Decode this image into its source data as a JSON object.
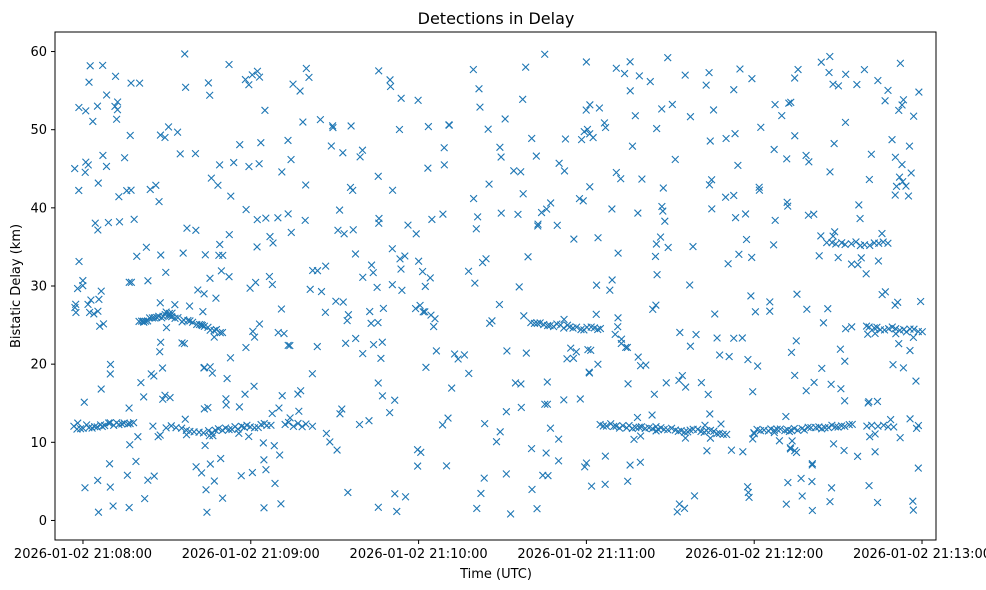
{
  "chart_data": {
    "type": "scatter",
    "title": "Detections in Delay",
    "xlabel": "Time (UTC)",
    "ylabel": "Bistatic Delay (km)",
    "marker": "x",
    "color": "#1f77b4",
    "grid": false,
    "x_axis_type": "datetime",
    "xlim": [
      "2026-01-02 21:07:50",
      "2026-01-02 21:13:05"
    ],
    "ylim": [
      -2.5,
      62.5
    ],
    "x_ticks": [
      "2026-01-02 21:08:00",
      "2026-01-02 21:09:00",
      "2026-01-02 21:10:00",
      "2026-01-02 21:11:00",
      "2026-01-02 21:12:00",
      "2026-01-02 21:13:00"
    ],
    "y_ticks": [
      0,
      10,
      20,
      30,
      40,
      50,
      60
    ],
    "tracks": [
      {
        "kind": "track",
        "x_start": "2026-01-02 21:07:57",
        "x_end": "2026-01-02 21:08:18",
        "y_start": 11.9,
        "y_end": 12.5,
        "count": 22
      },
      {
        "kind": "track",
        "x_start": "2026-01-02 21:08:30",
        "x_end": "2026-01-02 21:08:45",
        "y_start": 12.0,
        "y_end": 11.0,
        "count": 10
      },
      {
        "kind": "track",
        "x_start": "2026-01-02 21:08:45",
        "x_end": "2026-01-02 21:09:07",
        "y_start": 11.4,
        "y_end": 12.3,
        "count": 20
      },
      {
        "kind": "track",
        "x_start": "2026-01-02 21:09:12",
        "x_end": "2026-01-02 21:09:20",
        "y_start": 12.4,
        "y_end": 12.1,
        "count": 6
      },
      {
        "kind": "track",
        "x_start": "2026-01-02 21:08:20",
        "x_end": "2026-01-02 21:08:32",
        "y_start": 25.4,
        "y_end": 26.5,
        "count": 16
      },
      {
        "kind": "track",
        "x_start": "2026-01-02 21:08:32",
        "x_end": "2026-01-02 21:08:50",
        "y_start": 26.0,
        "y_end": 24.0,
        "count": 18
      },
      {
        "kind": "track",
        "x_start": "2026-01-02 21:10:40",
        "x_end": "2026-01-02 21:11:05",
        "y_start": 25.2,
        "y_end": 24.4,
        "count": 22
      },
      {
        "kind": "track",
        "x_start": "2026-01-02 21:11:05",
        "x_end": "2026-01-02 21:11:50",
        "y_start": 12.2,
        "y_end": 11.2,
        "count": 40
      },
      {
        "kind": "track",
        "x_start": "2026-01-02 21:12:00",
        "x_end": "2026-01-02 21:12:35",
        "y_start": 11.4,
        "y_end": 12.2,
        "count": 30
      },
      {
        "kind": "track",
        "x_start": "2026-01-02 21:12:26",
        "x_end": "2026-01-02 21:12:48",
        "y_start": 35.4,
        "y_end": 35.4,
        "count": 14
      },
      {
        "kind": "track",
        "x_start": "2026-01-02 21:12:40",
        "x_end": "2026-01-02 21:13:00",
        "y_start": 24.8,
        "y_end": 24.2,
        "count": 16
      },
      {
        "kind": "track",
        "x_start": "2026-01-02 21:12:40",
        "x_end": "2026-01-02 21:12:50",
        "y_start": 12.0,
        "y_end": 12.0,
        "count": 6
      }
    ],
    "clutter": {
      "kind": "random",
      "x_start": "2026-01-02 21:07:57",
      "x_end": "2026-01-02 21:13:00",
      "y_min": 0.8,
      "y_max": 59.8,
      "count": 680
    }
  }
}
